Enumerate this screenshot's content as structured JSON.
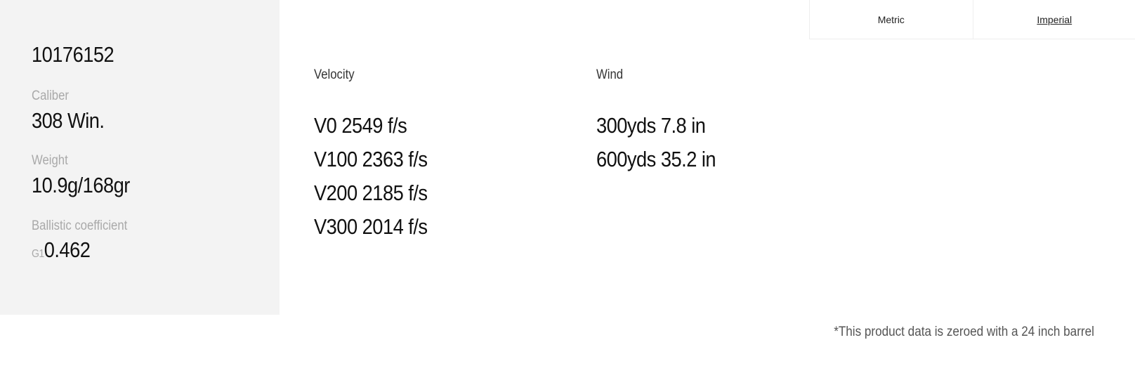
{
  "units": {
    "metric": "Metric",
    "imperial": "Imperial"
  },
  "product": {
    "id": "10176152",
    "caliber_label": "Caliber",
    "caliber": "308 Win.",
    "weight_label": "Weight",
    "weight": "10.9g/168gr",
    "bc_label": "Ballistic coefficient",
    "bc_prefix": "G1",
    "bc": "0.462"
  },
  "velocity": {
    "title": "Velocity",
    "rows": [
      "V0 2549 f/s",
      "V100 2363 f/s",
      "V200 2185 f/s",
      "V300 2014 f/s"
    ]
  },
  "wind": {
    "title": "Wind",
    "rows": [
      "300yds 7.8 in",
      "600yds 35.2 in"
    ]
  },
  "footnote": "*This product data is zeroed with a 24 inch barrel"
}
